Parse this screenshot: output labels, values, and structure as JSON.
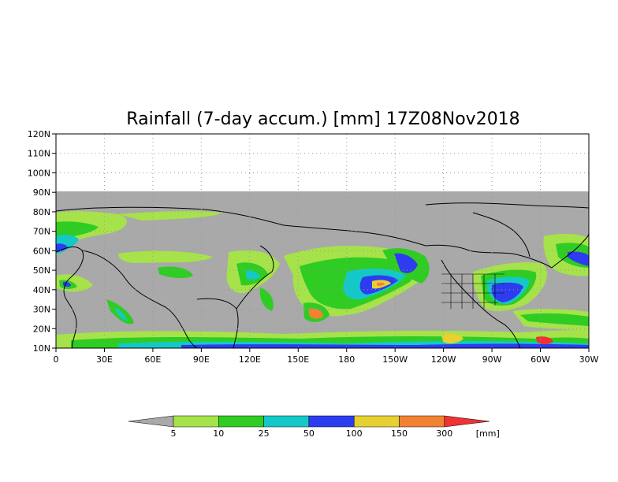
{
  "title": "Rainfall (7-day accum.) [mm] 17Z08Nov2018",
  "y_ticks": [
    "120N",
    "110N",
    "100N",
    "90N",
    "80N",
    "70N",
    "60N",
    "50N",
    "40N",
    "30N",
    "20N",
    "10N"
  ],
  "y_values": [
    120,
    110,
    100,
    90,
    80,
    70,
    60,
    50,
    40,
    30,
    20,
    10
  ],
  "x_ticks": [
    "0",
    "30E",
    "60E",
    "90E",
    "120E",
    "150E",
    "180",
    "150W",
    "120W",
    "90W",
    "60W",
    "30W"
  ],
  "x_values": [
    0,
    30,
    60,
    90,
    120,
    150,
    180,
    210,
    240,
    270,
    300,
    330
  ],
  "colors": {
    "land_mask": "#a9a9a9",
    "no_data": "#ffffff",
    "bins": [
      "#a6e24a",
      "#2fcc24",
      "#14c8c8",
      "#2e3cf0",
      "#e6d032",
      "#f08232",
      "#f03232"
    ]
  },
  "colorbar": {
    "labels": [
      "5",
      "10",
      "25",
      "50",
      "100",
      "150",
      "300"
    ],
    "unit": "[mm]",
    "below_color": "#a9a9a9",
    "above_color": "#f03232"
  }
}
